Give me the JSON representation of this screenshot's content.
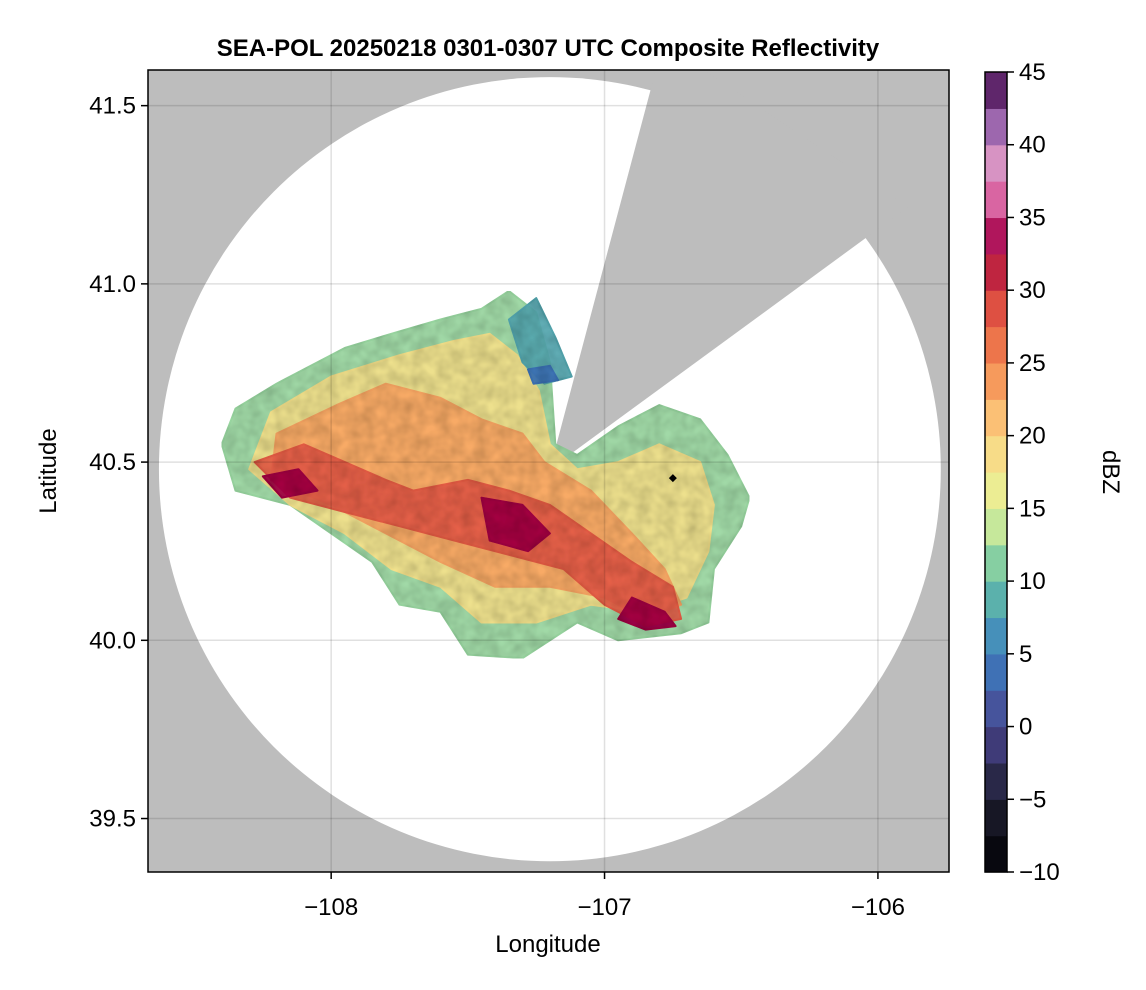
{
  "chart_data": {
    "type": "heatmap",
    "title": "SEA-POL 20250218 0301-0307 UTC Composite Reflectivity",
    "xlabel": "Longitude",
    "ylabel": "Latitude",
    "xlim": [
      -108.67,
      -105.74
    ],
    "ylim": [
      39.35,
      41.6
    ],
    "xticks": [
      -108,
      -107,
      -106
    ],
    "xtick_labels": [
      "−108",
      "−107",
      "−106"
    ],
    "yticks": [
      39.5,
      40.0,
      40.5,
      41.0,
      41.5
    ],
    "ytick_labels": [
      "39.5",
      "40.0",
      "40.5",
      "41.0",
      "41.5"
    ],
    "grid": true,
    "background_color": "#bdbdbd",
    "coverage_color": "#ffffff",
    "radar": {
      "center_lon": -107.2,
      "center_lat": 40.48,
      "radius_lat_deg": 1.1,
      "radius_lon_deg": 1.43,
      "blocked_sector": {
        "edge_a_end": [
          -106.84,
          41.52
        ],
        "edge_b_end": [
          -106.06,
          41.12
        ]
      }
    },
    "marker": {
      "lon": -106.75,
      "lat": 40.455,
      "color": "#000000"
    },
    "echo_regions": [
      {
        "level": 12,
        "polygon": [
          [
            -108.35,
            40.65
          ],
          [
            -108.2,
            40.72
          ],
          [
            -107.95,
            40.82
          ],
          [
            -107.78,
            40.86
          ],
          [
            -107.6,
            40.9
          ],
          [
            -107.45,
            40.93
          ],
          [
            -107.35,
            40.98
          ],
          [
            -107.25,
            40.92
          ],
          [
            -107.2,
            40.78
          ],
          [
            -107.18,
            40.55
          ],
          [
            -107.1,
            40.52
          ],
          [
            -106.95,
            40.6
          ],
          [
            -106.8,
            40.66
          ],
          [
            -106.65,
            40.62
          ],
          [
            -106.55,
            40.52
          ],
          [
            -106.47,
            40.4
          ],
          [
            -106.5,
            40.32
          ],
          [
            -106.6,
            40.2
          ],
          [
            -106.62,
            40.05
          ],
          [
            -106.72,
            40.02
          ],
          [
            -106.95,
            40.0
          ],
          [
            -107.1,
            40.05
          ],
          [
            -107.3,
            39.95
          ],
          [
            -107.5,
            39.96
          ],
          [
            -107.6,
            40.08
          ],
          [
            -107.75,
            40.1
          ],
          [
            -107.85,
            40.22
          ],
          [
            -108.0,
            40.3
          ],
          [
            -108.15,
            40.38
          ],
          [
            -108.35,
            40.42
          ],
          [
            -108.4,
            40.55
          ]
        ]
      },
      {
        "level": 18,
        "polygon": [
          [
            -108.22,
            40.64
          ],
          [
            -108.0,
            40.74
          ],
          [
            -107.75,
            40.8
          ],
          [
            -107.55,
            40.84
          ],
          [
            -107.42,
            40.86
          ],
          [
            -107.32,
            40.8
          ],
          [
            -107.24,
            40.7
          ],
          [
            -107.2,
            40.55
          ],
          [
            -107.1,
            40.48
          ],
          [
            -106.95,
            40.5
          ],
          [
            -106.8,
            40.55
          ],
          [
            -106.65,
            40.5
          ],
          [
            -106.6,
            40.38
          ],
          [
            -106.62,
            40.25
          ],
          [
            -106.7,
            40.12
          ],
          [
            -106.85,
            40.08
          ],
          [
            -107.05,
            40.1
          ],
          [
            -107.25,
            40.05
          ],
          [
            -107.45,
            40.05
          ],
          [
            -107.6,
            40.15
          ],
          [
            -107.78,
            40.2
          ],
          [
            -107.95,
            40.3
          ],
          [
            -108.15,
            40.38
          ],
          [
            -108.3,
            40.48
          ]
        ]
      },
      {
        "level": 8,
        "polygon": [
          [
            -107.35,
            40.9
          ],
          [
            -107.25,
            40.96
          ],
          [
            -107.18,
            40.85
          ],
          [
            -107.12,
            40.74
          ],
          [
            -107.22,
            40.72
          ],
          [
            -107.3,
            40.78
          ]
        ]
      },
      {
        "level": 23,
        "polygon": [
          [
            -108.2,
            40.58
          ],
          [
            -107.98,
            40.66
          ],
          [
            -107.8,
            40.72
          ],
          [
            -107.6,
            40.68
          ],
          [
            -107.45,
            40.62
          ],
          [
            -107.3,
            40.58
          ],
          [
            -107.22,
            40.5
          ],
          [
            -107.05,
            40.42
          ],
          [
            -106.9,
            40.3
          ],
          [
            -106.78,
            40.2
          ],
          [
            -106.72,
            40.1
          ],
          [
            -106.85,
            40.06
          ],
          [
            -107.0,
            40.12
          ],
          [
            -107.2,
            40.15
          ],
          [
            -107.4,
            40.15
          ],
          [
            -107.6,
            40.22
          ],
          [
            -107.8,
            40.3
          ],
          [
            -108.0,
            40.38
          ],
          [
            -108.22,
            40.45
          ]
        ]
      },
      {
        "level": 28,
        "polygon": [
          [
            -108.28,
            40.5
          ],
          [
            -108.1,
            40.55
          ],
          [
            -107.95,
            40.5
          ],
          [
            -107.8,
            40.45
          ],
          [
            -107.7,
            40.42
          ],
          [
            -107.5,
            40.45
          ],
          [
            -107.35,
            40.42
          ],
          [
            -107.2,
            40.38
          ],
          [
            -107.05,
            40.3
          ],
          [
            -106.9,
            40.22
          ],
          [
            -106.75,
            40.15
          ],
          [
            -106.72,
            40.06
          ],
          [
            -106.85,
            40.04
          ],
          [
            -107.0,
            40.1
          ],
          [
            -107.15,
            40.2
          ],
          [
            -107.35,
            40.24
          ],
          [
            -107.55,
            40.28
          ],
          [
            -107.75,
            40.32
          ],
          [
            -107.95,
            40.36
          ],
          [
            -108.15,
            40.4
          ]
        ]
      },
      {
        "level": 33,
        "polygon": [
          [
            -107.45,
            40.4
          ],
          [
            -107.3,
            40.38
          ],
          [
            -107.2,
            40.3
          ],
          [
            -107.28,
            40.25
          ],
          [
            -107.42,
            40.28
          ]
        ]
      },
      {
        "level": 33,
        "polygon": [
          [
            -106.9,
            40.12
          ],
          [
            -106.78,
            40.08
          ],
          [
            -106.74,
            40.04
          ],
          [
            -106.85,
            40.03
          ],
          [
            -106.95,
            40.06
          ]
        ]
      },
      {
        "level": 33,
        "polygon": [
          [
            -108.25,
            40.46
          ],
          [
            -108.12,
            40.48
          ],
          [
            -108.05,
            40.42
          ],
          [
            -108.18,
            40.4
          ]
        ]
      },
      {
        "level": 4,
        "polygon": [
          [
            -107.28,
            40.76
          ],
          [
            -107.2,
            40.77
          ],
          [
            -107.17,
            40.73
          ],
          [
            -107.26,
            40.72
          ]
        ]
      }
    ],
    "colorbar": {
      "label": "dBZ",
      "min": -10,
      "max": 45,
      "ticks": [
        45,
        40,
        35,
        30,
        25,
        20,
        15,
        10,
        5,
        0,
        -5,
        -10
      ],
      "tick_labels": [
        "45",
        "40",
        "35",
        "30",
        "25",
        "20",
        "15",
        "10",
        "5",
        "0",
        "−5",
        "−10"
      ],
      "colormap_stops": [
        {
          "value": -10,
          "color": "#000004"
        },
        {
          "value": -5,
          "color": "#1e1e30"
        },
        {
          "value": 0,
          "color": "#4a4590"
        },
        {
          "value": 5,
          "color": "#3b7fc1"
        },
        {
          "value": 10,
          "color": "#66c2a5"
        },
        {
          "value": 15,
          "color": "#e6f598"
        },
        {
          "value": 20,
          "color": "#fdd382"
        },
        {
          "value": 25,
          "color": "#f4874f"
        },
        {
          "value": 30,
          "color": "#d73e3e"
        },
        {
          "value": 33,
          "color": "#9e0142"
        },
        {
          "value": 35,
          "color": "#ce3a86"
        },
        {
          "value": 38,
          "color": "#e8a0c9"
        },
        {
          "value": 42,
          "color": "#8c5aa8"
        },
        {
          "value": 45,
          "color": "#3f0040"
        }
      ]
    }
  }
}
